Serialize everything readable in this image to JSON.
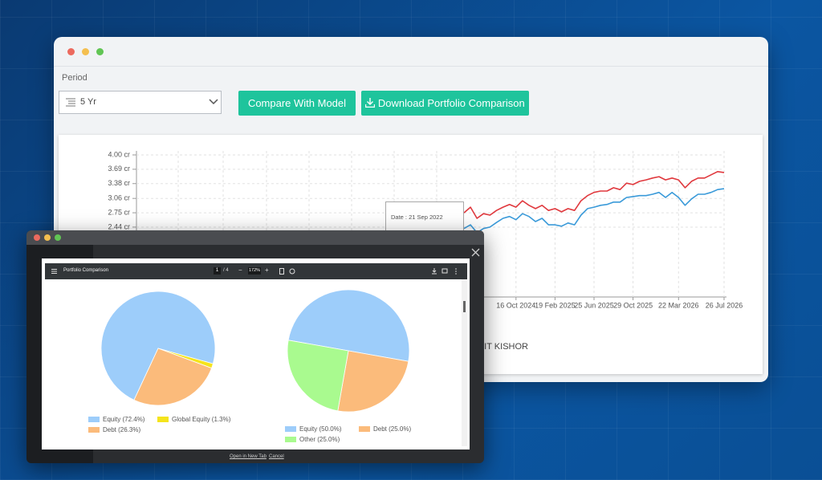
{
  "window": {
    "period_label": "Period",
    "period_value": "5 Yr",
    "buttons": [
      "Compare With Model",
      "Download Portfolio Comparison"
    ],
    "tooltip_date": "Date : 21 Sep 2022",
    "user_name": "MIT KISHOR"
  },
  "pdf_viewer": {
    "title": "Portfolio Comparison",
    "page": 1,
    "page_count": "/ 4",
    "zoom": "172%",
    "links": [
      "Open in New Tab",
      "Cancel"
    ]
  },
  "chart_data": [
    {
      "type": "line",
      "categories": [
        null,
        null,
        null,
        null,
        null,
        null,
        null,
        null,
        "16 Oct 2024",
        null,
        null,
        null,
        null,
        null,
        "19 Feb 2025",
        null,
        null,
        null,
        null,
        null,
        "25 Jun 2025",
        null,
        null,
        null,
        null,
        null,
        "29 Oct 2025",
        null,
        null,
        null,
        null,
        null,
        null,
        "22 Mar 2026",
        null,
        null,
        null,
        null,
        null,
        null,
        "26 Jul 2026"
      ],
      "series": [
        {
          "color": "#e0393e",
          "values": [
            2.75,
            2.87,
            2.63,
            2.73,
            2.7,
            2.8,
            2.87,
            2.93,
            2.87,
            3.01,
            2.91,
            2.84,
            2.91,
            2.8,
            2.84,
            2.77,
            2.84,
            2.8,
            3.01,
            3.12,
            3.19,
            3.22,
            3.22,
            3.29,
            3.25,
            3.39,
            3.36,
            3.43,
            3.46,
            3.5,
            3.53,
            3.46,
            3.5,
            3.46,
            3.29,
            3.43,
            3.5,
            3.5,
            3.57,
            3.64,
            3.62
          ]
        },
        {
          "color": "#3a9ad9",
          "values": [
            2.41,
            2.49,
            2.32,
            2.41,
            2.44,
            2.54,
            2.63,
            2.67,
            2.6,
            2.73,
            2.67,
            2.56,
            2.63,
            2.49,
            2.49,
            2.46,
            2.53,
            2.49,
            2.7,
            2.84,
            2.87,
            2.91,
            2.93,
            2.98,
            2.98,
            3.08,
            3.1,
            3.12,
            3.12,
            3.15,
            3.19,
            3.08,
            3.19,
            3.08,
            2.91,
            3.05,
            3.15,
            3.15,
            3.19,
            3.25,
            3.27
          ]
        }
      ],
      "ylim": [
        0.93,
        4.0
      ],
      "yticks": [
        {
          "value": 4.0,
          "label": "4.00 cr"
        },
        {
          "value": 3.69,
          "label": "3.69 cr"
        },
        {
          "value": 3.38,
          "label": "3.38 cr"
        },
        {
          "value": 3.06,
          "label": "3.06 cr"
        },
        {
          "value": 2.75,
          "label": "2.75 cr"
        },
        {
          "value": 2.44,
          "label": "2.44 cr"
        }
      ],
      "grid": true
    },
    {
      "type": "pie",
      "categories": [
        "Equity (72.4%)",
        "Global Equity (1.3%)",
        "Debt (26.3%)"
      ],
      "values": [
        72.4,
        1.3,
        26.3
      ],
      "colors": [
        "#9dcdfa",
        "#f5e41c",
        "#fbbb7b"
      ]
    },
    {
      "type": "pie",
      "categories": [
        "Equity (50.0%)",
        "Debt (25.0%)",
        "Other (25.0%)"
      ],
      "values": [
        50.0,
        25.0,
        25.0
      ],
      "colors": [
        "#9dcdfa",
        "#fbbb7b",
        "#a9fa8f"
      ]
    }
  ]
}
